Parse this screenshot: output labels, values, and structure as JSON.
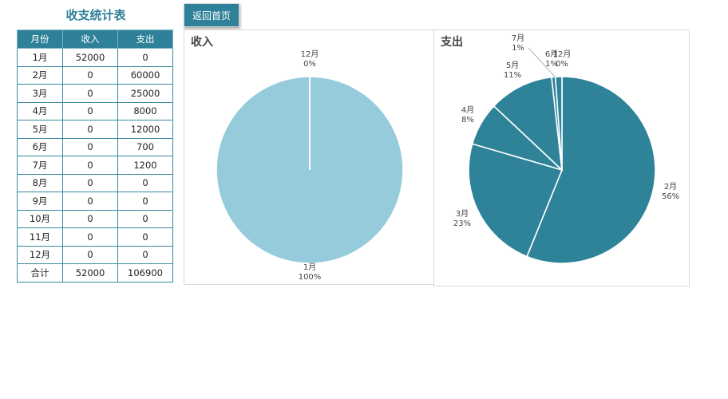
{
  "page": {
    "title": "收支统计表",
    "back_button": "返回首页"
  },
  "table": {
    "headers": [
      "月份",
      "收入",
      "支出"
    ],
    "rows": [
      [
        "1月",
        "52000",
        "0"
      ],
      [
        "2月",
        "0",
        "60000"
      ],
      [
        "3月",
        "0",
        "25000"
      ],
      [
        "4月",
        "0",
        "8000"
      ],
      [
        "5月",
        "0",
        "12000"
      ],
      [
        "6月",
        "0",
        "700"
      ],
      [
        "7月",
        "0",
        "1200"
      ],
      [
        "8月",
        "0",
        "0"
      ],
      [
        "9月",
        "0",
        "0"
      ],
      [
        "10月",
        "0",
        "0"
      ],
      [
        "11月",
        "0",
        "0"
      ],
      [
        "12月",
        "0",
        "0"
      ],
      [
        "合计",
        "52000",
        "106900"
      ]
    ]
  },
  "colors": {
    "accent": "#2e8198",
    "income_fill": "#96cbdc",
    "expense_fill": "#2e8399"
  },
  "chart_data": [
    {
      "type": "pie",
      "title": "收入",
      "categories": [
        "1月",
        "2月",
        "3月",
        "4月",
        "5月",
        "6月",
        "7月",
        "8月",
        "9月",
        "10月",
        "11月",
        "12月"
      ],
      "values": [
        52000,
        0,
        0,
        0,
        0,
        0,
        0,
        0,
        0,
        0,
        0,
        0
      ],
      "labels": [
        "1月\n100%",
        "12月\n0%"
      ]
    },
    {
      "type": "pie",
      "title": "支出",
      "categories": [
        "1月",
        "2月",
        "3月",
        "4月",
        "5月",
        "6月",
        "7月",
        "8月",
        "9月",
        "10月",
        "11月",
        "12月"
      ],
      "values": [
        0,
        60000,
        25000,
        8000,
        12000,
        700,
        1200,
        0,
        0,
        0,
        0,
        0
      ],
      "labels": [
        "2月\n56%",
        "3月\n23%",
        "4月\n8%",
        "5月\n11%",
        "6月\n1%",
        "7月\n1%",
        "12月\n0%"
      ]
    }
  ],
  "pie_labels": {
    "income": [
      {
        "name": "1月",
        "pct": "100%"
      },
      {
        "name": "12月",
        "pct": "0%"
      }
    ],
    "expense": [
      {
        "name": "2月",
        "pct": "56%"
      },
      {
        "name": "3月",
        "pct": "23%"
      },
      {
        "name": "4月",
        "pct": "8%"
      },
      {
        "name": "5月",
        "pct": "11%"
      },
      {
        "name": "6月",
        "pct": "1%"
      },
      {
        "name": "7月",
        "pct": "1%"
      },
      {
        "name": "12月",
        "pct": "0%"
      }
    ]
  }
}
